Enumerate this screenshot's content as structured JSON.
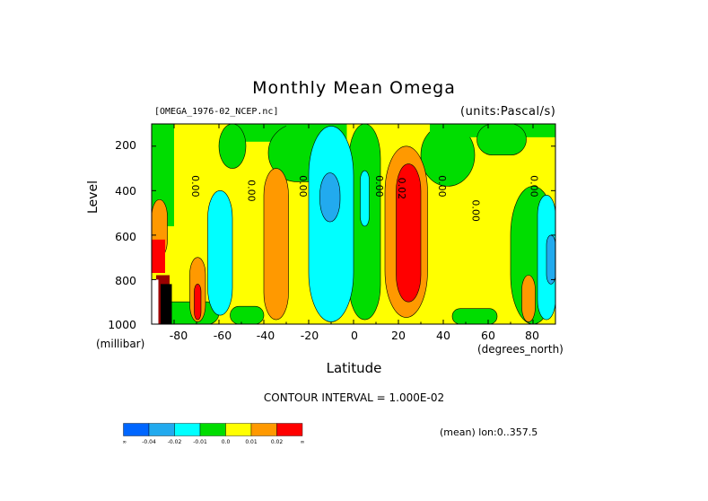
{
  "chart_data": {
    "type": "contour",
    "title": "Monthly Mean Omega",
    "dataset_label": "[OMEGA_1976-02_NCEP.nc]",
    "units_label": "(units:Pascal/s)",
    "xlabel": "Latitude",
    "x_unit_label": "(degrees_north)",
    "ylabel": "Level",
    "y_unit_label": "(millibar)",
    "xlim": [
      -90,
      90
    ],
    "ylim": [
      1000,
      100
    ],
    "x_ticks": [
      "-80",
      "-60",
      "-40",
      "-20",
      "0",
      "20",
      "40",
      "60",
      "80"
    ],
    "y_ticks": [
      "200",
      "400",
      "600",
      "800",
      "1000"
    ],
    "contour_interval_text": "CONTOUR INTERVAL = 1.000E-02",
    "contour_labels": [
      "0.00",
      "0.00",
      "0.00",
      "0.00",
      "0.02",
      "0.00",
      "0.00",
      "0.00"
    ],
    "colorbar": {
      "labels": [
        "-∞",
        "-0.04",
        "-0.02",
        "-0.01",
        "0.0",
        "0.01",
        "0.02",
        "∞"
      ],
      "colors": [
        "#0066ff",
        "#22aaee",
        "#00ffff",
        "#00dd00",
        "#ffff00",
        "#ff9900",
        "#ff0000"
      ]
    },
    "footer": "(mean) lon:0..357.5",
    "colors": {
      "green": "#00dd00",
      "yellow": "#ffff00",
      "orange": "#ff9900",
      "red": "#ff0000",
      "cyan": "#00ffff",
      "skyblue": "#22aaee",
      "blue": "#0066ff",
      "darkred": "#990000",
      "black": "#000000"
    }
  }
}
